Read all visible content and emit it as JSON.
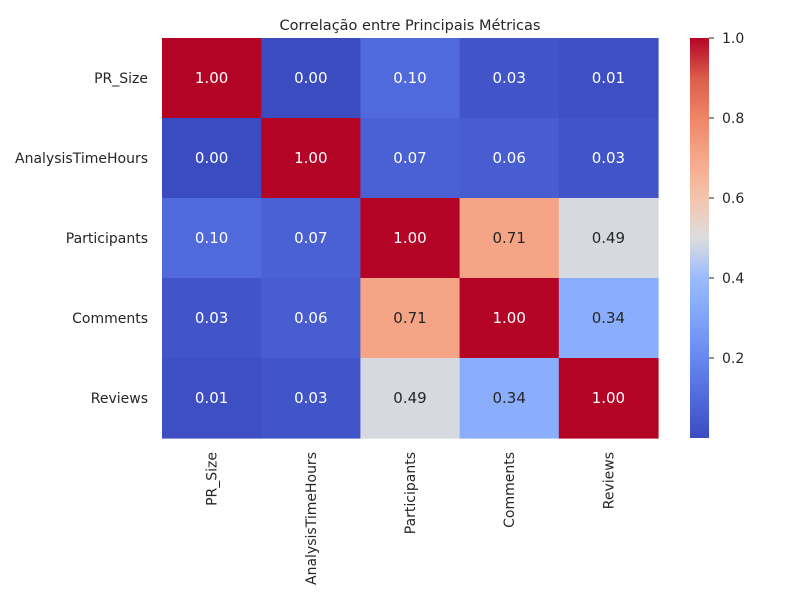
{
  "chart_data": {
    "type": "heatmap",
    "title": "Correlação entre Principais Métricas",
    "xlabel": "",
    "ylabel": "",
    "x_labels": [
      "PR_Size",
      "AnalysisTimeHours",
      "Participants",
      "Comments",
      "Reviews"
    ],
    "y_labels": [
      "PR_Size",
      "AnalysisTimeHours",
      "Participants",
      "Comments",
      "Reviews"
    ],
    "values": [
      [
        1.0,
        0.0,
        0.1,
        0.03,
        0.01
      ],
      [
        0.0,
        1.0,
        0.07,
        0.06,
        0.03
      ],
      [
        0.1,
        0.07,
        1.0,
        0.71,
        0.49
      ],
      [
        0.03,
        0.06,
        0.71,
        1.0,
        0.34
      ],
      [
        0.01,
        0.03,
        0.49,
        0.34,
        1.0
      ]
    ],
    "value_format": "0.00",
    "colormap": "coolwarm",
    "color_range": [
      0.0,
      1.0
    ],
    "colorbar_ticks": [
      "0.2",
      "0.4",
      "0.6",
      "0.8",
      "1.0"
    ],
    "colorbar_tick_values": [
      0.2,
      0.4,
      0.6,
      0.8,
      1.0
    ],
    "grid": false,
    "legend": "colorbar-right"
  }
}
